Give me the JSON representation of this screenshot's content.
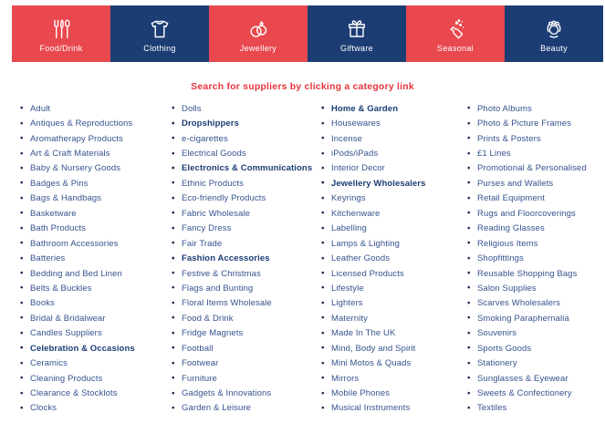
{
  "tabs": {
    "items": [
      {
        "label": "Food/Drink",
        "icon": "cutlery-icon",
        "variant": "red"
      },
      {
        "label": "Clothing",
        "icon": "tshirt-icon",
        "variant": "navy"
      },
      {
        "label": "Jewellery",
        "icon": "rings-icon",
        "variant": "red"
      },
      {
        "label": "Giftware",
        "icon": "gift-icon",
        "variant": "navy"
      },
      {
        "label": "Seasonal",
        "icon": "champagne-icon",
        "variant": "red"
      },
      {
        "label": "Beauty",
        "icon": "face-icon",
        "variant": "navy"
      }
    ]
  },
  "heading": {
    "text": "Search for suppliers by clicking a category link"
  },
  "categories": {
    "columns": [
      [
        "Adult",
        "Antiques & Reproductions",
        "Aromatherapy Products",
        "Art & Craft Materials",
        "Baby & Nursery Goods",
        "Badges & Pins",
        "Bags & Handbags",
        "Basketware",
        "Bath Products",
        "Bathroom Accessories",
        "Batteries",
        "Bedding and Bed Linen",
        "Belts & Buckles",
        "Books",
        "Bridal & Bridalwear",
        "Candles Suppliers",
        "Celebration & Occasions",
        "Ceramics",
        "Cleaning Products",
        "Clearance & Stocklots",
        "Clocks"
      ],
      [
        "Dolls",
        "Dropshippers",
        "e-cigarettes",
        "Electrical Goods",
        "Electronics & Communications",
        "Ethnic Products",
        "Eco-friendly Products",
        "Fabric Wholesale",
        "Fancy Dress",
        "Fair Trade",
        "Fashion Accessories",
        "Festive & Christmas",
        "Flags and Bunting",
        "Floral Items Wholesale",
        "Food & Drink",
        "Fridge Magnets",
        "Football",
        "Footwear",
        "Furniture",
        "Gadgets & Innovations",
        "Garden & Leisure"
      ],
      [
        "Home & Garden",
        "Housewares",
        "Incense",
        "iPods/iPads",
        "Interior Decor",
        "Jewellery Wholesalers",
        "Keyrings",
        "Kitchenware",
        "Labelling",
        "Lamps & Lighting",
        "Leather Goods",
        "Licensed Products",
        "Lifestyle",
        "Lighters",
        "Maternity",
        "Made In The UK",
        "Mind, Body and Spirit",
        "Mini Motos & Quads",
        "Mirrors",
        "Mobile Phones",
        "Musical Instruments"
      ],
      [
        "Photo Albums",
        "Photo & Picture Frames",
        "Prints & Posters",
        "£1 Lines",
        "Promotional & Personalised",
        "Purses and Wallets",
        "Retail Equipment",
        "Rugs and Floorcoverings",
        "Reading Glasses",
        "Religious Items",
        "Shopfittings",
        "Reusable Shopping Bags",
        "Salon Supplies",
        "Scarves Wholesalers",
        "Smoking Paraphernalia",
        "Souvenirs",
        "Sports Goods",
        "Stationery",
        "Sunglasses & Eyewear",
        "Sweets & Confectionery",
        "Textiles"
      ]
    ],
    "bold_items": [
      "Celebration & Occasions",
      "Dropshippers",
      "Electronics & Communications",
      "Fashion Accessories",
      "Home & Garden",
      "Jewellery Wholesalers"
    ]
  },
  "colors": {
    "tab_red": "#E8484E",
    "tab_navy": "#1C3D74",
    "heading_red": "#E8353E",
    "link": "#35538E",
    "link_bold": "#1C3D74",
    "bullet": "#1D2F55"
  }
}
